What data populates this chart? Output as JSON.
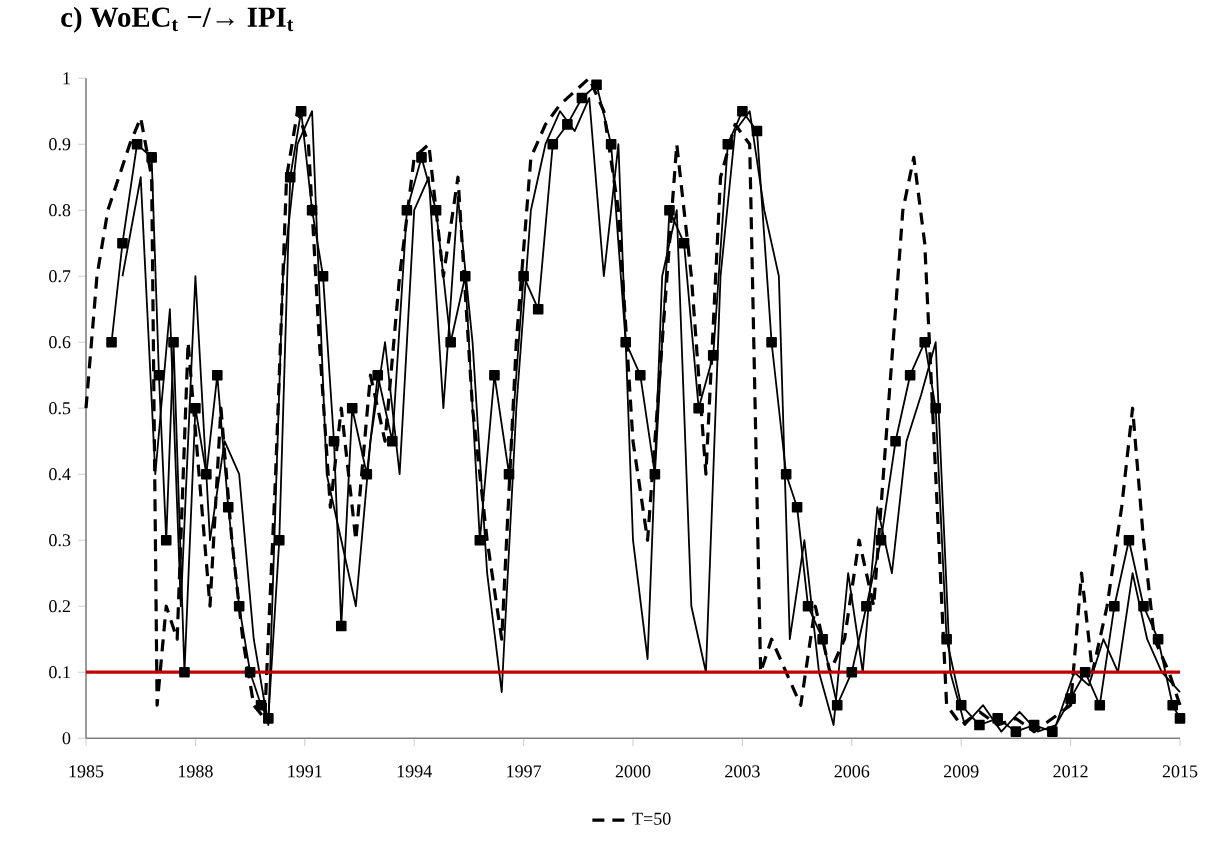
{
  "chart_data": {
    "type": "line",
    "title": "c)   WoEC$_{t}$ −/→ IPI$_{t}$",
    "xlim": [
      1985,
      2015
    ],
    "xticks": [
      1985,
      1988,
      1991,
      1994,
      1997,
      2000,
      2003,
      2006,
      2009,
      2012,
      2015
    ],
    "ylim": [
      0,
      1
    ],
    "yticks": [
      0,
      0.1,
      0.2,
      0.3,
      0.4,
      0.5,
      0.6,
      0.7,
      0.8,
      0.9,
      1
    ],
    "legend": "bottom",
    "ref_lines": [
      {
        "axis": "y",
        "value": 0.1,
        "color": "#c00000"
      }
    ],
    "series": [
      {
        "name": "T=50",
        "color": "#000000",
        "line_style": "dashed",
        "marker": "none",
        "x": [
          1985.0,
          1985.3,
          1985.6,
          1985.9,
          1986.2,
          1986.5,
          1986.8,
          1986.95,
          1987.2,
          1987.5,
          1987.8,
          1988.1,
          1988.4,
          1988.7,
          1989.0,
          1989.3,
          1989.6,
          1989.9,
          1990.2,
          1990.5,
          1990.8,
          1991.1,
          1991.4,
          1991.7,
          1992.0,
          1992.4,
          1992.8,
          1993.2,
          1993.6,
          1994.0,
          1994.4,
          1994.8,
          1995.2,
          1995.6,
          1996.0,
          1996.4,
          1996.8,
          1997.2,
          1997.6,
          1998.0,
          1998.4,
          1998.8,
          1999.2,
          1999.6,
          2000.0,
          2000.4,
          2000.8,
          2001.2,
          2001.6,
          2002.0,
          2002.4,
          2002.8,
          2003.2,
          2003.5,
          2003.8,
          2004.2,
          2004.6,
          2005.0,
          2005.4,
          2005.8,
          2006.2,
          2006.6,
          2007.0,
          2007.4,
          2007.7,
          2008.0,
          2008.3,
          2008.6,
          2009.0,
          2009.5,
          2010.0,
          2010.5,
          2011.0,
          2011.5,
          2012.0,
          2012.3,
          2012.6,
          2013.0,
          2013.4,
          2013.7,
          2014.0,
          2014.3,
          2014.7,
          2015.0
        ],
        "values": [
          0.5,
          0.7,
          0.8,
          0.85,
          0.9,
          0.94,
          0.85,
          0.05,
          0.2,
          0.15,
          0.6,
          0.4,
          0.2,
          0.5,
          0.3,
          0.15,
          0.05,
          0.03,
          0.4,
          0.85,
          0.95,
          0.9,
          0.6,
          0.35,
          0.5,
          0.3,
          0.55,
          0.45,
          0.7,
          0.88,
          0.9,
          0.7,
          0.85,
          0.5,
          0.3,
          0.15,
          0.6,
          0.88,
          0.93,
          0.96,
          0.98,
          1.0,
          0.95,
          0.8,
          0.45,
          0.3,
          0.6,
          0.9,
          0.7,
          0.4,
          0.85,
          0.93,
          0.9,
          0.1,
          0.15,
          0.1,
          0.05,
          0.2,
          0.1,
          0.15,
          0.3,
          0.2,
          0.5,
          0.8,
          0.88,
          0.75,
          0.4,
          0.05,
          0.02,
          0.04,
          0.02,
          0.03,
          0.01,
          0.03,
          0.05,
          0.25,
          0.1,
          0.2,
          0.35,
          0.5,
          0.3,
          0.15,
          0.1,
          0.05
        ]
      },
      {
        "color": "#000000",
        "line_style": "solid",
        "marker": "square",
        "x": [
          1985.7,
          1986.0,
          1986.4,
          1986.8,
          1987.0,
          1987.2,
          1987.4,
          1987.7,
          1988.0,
          1988.3,
          1988.6,
          1988.9,
          1989.2,
          1989.5,
          1989.8,
          1990.0,
          1990.3,
          1990.6,
          1990.9,
          1991.2,
          1991.5,
          1991.8,
          1992.0,
          1992.3,
          1992.7,
          1993.0,
          1993.4,
          1993.8,
          1994.2,
          1994.6,
          1995.0,
          1995.4,
          1995.8,
          1996.2,
          1996.6,
          1997.0,
          1997.4,
          1997.8,
          1998.2,
          1998.6,
          1999.0,
          1999.4,
          1999.8,
          2000.2,
          2000.6,
          2001.0,
          2001.4,
          2001.8,
          2002.2,
          2002.6,
          2003.0,
          2003.4,
          2003.8,
          2004.2,
          2004.5,
          2004.8,
          2005.2,
          2005.6,
          2006.0,
          2006.4,
          2006.8,
          2007.2,
          2007.6,
          2008.0,
          2008.3,
          2008.6,
          2009.0,
          2009.5,
          2010.0,
          2010.5,
          2011.0,
          2011.5,
          2012.0,
          2012.4,
          2012.8,
          2013.2,
          2013.6,
          2014.0,
          2014.4,
          2014.8,
          2015.0
        ],
        "values": [
          0.6,
          0.75,
          0.9,
          0.88,
          0.55,
          0.3,
          0.6,
          0.1,
          0.5,
          0.4,
          0.55,
          0.35,
          0.2,
          0.1,
          0.05,
          0.03,
          0.3,
          0.85,
          0.95,
          0.8,
          0.7,
          0.45,
          0.17,
          0.5,
          0.4,
          0.55,
          0.45,
          0.8,
          0.88,
          0.8,
          0.6,
          0.7,
          0.3,
          0.55,
          0.4,
          0.7,
          0.65,
          0.9,
          0.93,
          0.97,
          0.99,
          0.9,
          0.6,
          0.55,
          0.4,
          0.8,
          0.75,
          0.5,
          0.58,
          0.9,
          0.95,
          0.92,
          0.6,
          0.4,
          0.35,
          0.2,
          0.15,
          0.05,
          0.1,
          0.2,
          0.3,
          0.45,
          0.55,
          0.6,
          0.5,
          0.15,
          0.05,
          0.02,
          0.03,
          0.01,
          0.02,
          0.01,
          0.06,
          0.1,
          0.05,
          0.2,
          0.3,
          0.2,
          0.15,
          0.05,
          0.03
        ]
      },
      {
        "color": "#000000",
        "line_style": "solid",
        "marker": "none",
        "x": [
          1986.0,
          1986.5,
          1986.9,
          1987.3,
          1987.6,
          1988.0,
          1988.4,
          1988.8,
          1989.2,
          1989.6,
          1990.0,
          1990.4,
          1990.8,
          1991.2,
          1991.6,
          1992.0,
          1992.4,
          1992.8,
          1993.2,
          1993.6,
          1994.0,
          1994.4,
          1994.8,
          1995.2,
          1995.6,
          1996.0,
          1996.4,
          1996.8,
          1997.2,
          1997.6,
          1998.0,
          1998.4,
          1998.8,
          1999.2,
          1999.6,
          2000.0,
          2000.4,
          2000.8,
          2001.2,
          2001.6,
          2002.0,
          2002.4,
          2002.8,
          2003.2,
          2003.6,
          2004.0,
          2004.3,
          2004.7,
          2005.1,
          2005.5,
          2005.9,
          2006.3,
          2006.7,
          2007.1,
          2007.5,
          2007.9,
          2008.3,
          2008.7,
          2009.1,
          2009.6,
          2010.1,
          2010.6,
          2011.1,
          2011.6,
          2012.1,
          2012.5,
          2012.9,
          2013.3,
          2013.7,
          2014.1,
          2014.5,
          2015.0
        ],
        "values": [
          0.7,
          0.85,
          0.4,
          0.65,
          0.2,
          0.7,
          0.3,
          0.45,
          0.4,
          0.15,
          0.02,
          0.7,
          0.9,
          0.95,
          0.4,
          0.3,
          0.2,
          0.45,
          0.6,
          0.4,
          0.8,
          0.85,
          0.5,
          0.82,
          0.6,
          0.25,
          0.07,
          0.5,
          0.8,
          0.9,
          0.95,
          0.92,
          0.97,
          0.7,
          0.9,
          0.3,
          0.12,
          0.7,
          0.8,
          0.2,
          0.1,
          0.7,
          0.92,
          0.95,
          0.8,
          0.7,
          0.15,
          0.3,
          0.1,
          0.02,
          0.25,
          0.1,
          0.35,
          0.25,
          0.45,
          0.52,
          0.6,
          0.1,
          0.02,
          0.05,
          0.01,
          0.04,
          0.01,
          0.02,
          0.1,
          0.08,
          0.15,
          0.1,
          0.25,
          0.15,
          0.1,
          0.07
        ]
      }
    ]
  }
}
